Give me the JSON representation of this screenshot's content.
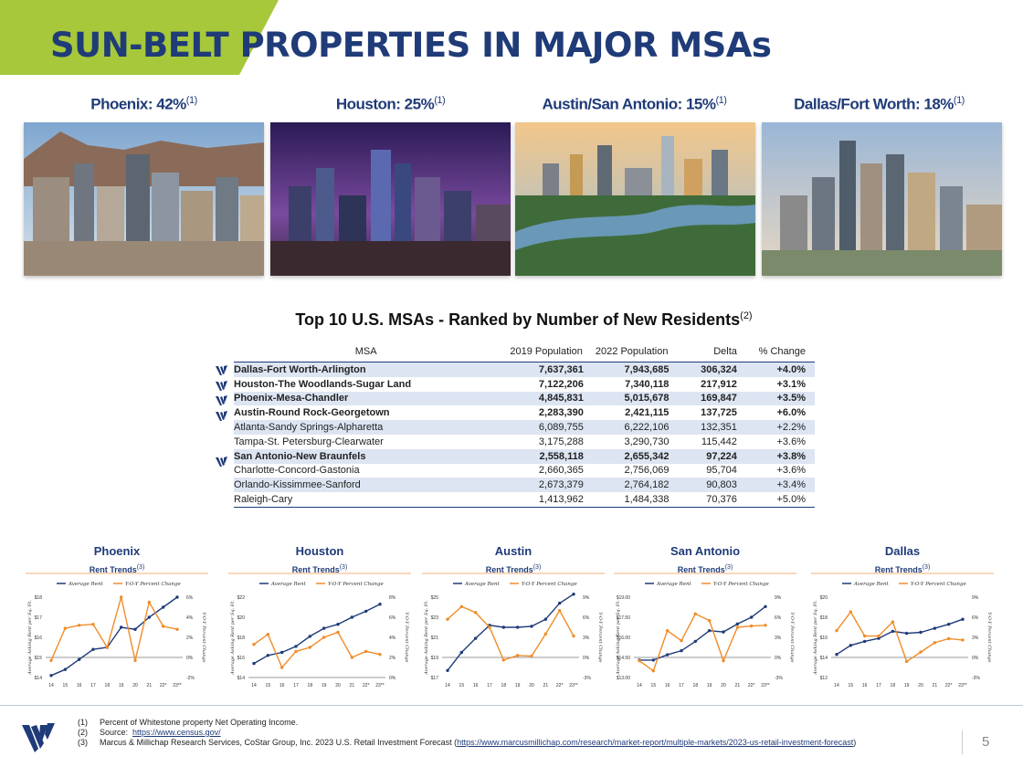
{
  "title": "SUN-BELT PROPERTIES IN MAJOR MSAs",
  "colors": {
    "navy": "#1f3b78",
    "lime": "#a6c83a",
    "orange": "#f08c2a",
    "shade": "#dde5f3"
  },
  "cities": [
    {
      "label": "Phoenix: 42%",
      "sup": "(1)"
    },
    {
      "label": "Houston: 25%",
      "sup": "(1)"
    },
    {
      "label": "Austin/San Antonio: 15%",
      "sup": "(1)"
    },
    {
      "label": "Dallas/Fort Worth: 18%",
      "sup": "(1)"
    }
  ],
  "table": {
    "title": "Top 10 U.S. MSAs - Ranked by Number of New Residents",
    "title_sup": "(2)",
    "headers": [
      "MSA",
      "2019 Population",
      "2022 Population",
      "Delta",
      "% Change"
    ],
    "rows": [
      {
        "msa": "Dallas-Fort Worth-Arlington",
        "p2019": "7,637,361",
        "p2022": "7,943,685",
        "delta": "306,324",
        "pct": "+4.0%",
        "bold": true,
        "shade": true,
        "mark": true
      },
      {
        "msa": "Houston-The Woodlands-Sugar Land",
        "p2019": "7,122,206",
        "p2022": "7,340,118",
        "delta": "217,912",
        "pct": "+3.1%",
        "bold": true,
        "shade": false,
        "mark": true
      },
      {
        "msa": "Phoenix-Mesa-Chandler",
        "p2019": "4,845,831",
        "p2022": "5,015,678",
        "delta": "169,847",
        "pct": "+3.5%",
        "bold": true,
        "shade": true,
        "mark": true
      },
      {
        "msa": "Austin-Round Rock-Georgetown",
        "p2019": "2,283,390",
        "p2022": "2,421,115",
        "delta": "137,725",
        "pct": "+6.0%",
        "bold": true,
        "shade": false,
        "mark": true
      },
      {
        "msa": "Atlanta-Sandy Springs-Alpharetta",
        "p2019": "6,089,755",
        "p2022": "6,222,106",
        "delta": "132,351",
        "pct": "+2.2%",
        "bold": false,
        "shade": true,
        "mark": false
      },
      {
        "msa": "Tampa-St. Petersburg-Clearwater",
        "p2019": "3,175,288",
        "p2022": "3,290,730",
        "delta": "115,442",
        "pct": "+3.6%",
        "bold": false,
        "shade": false,
        "mark": false
      },
      {
        "msa": "San Antonio-New Braunfels",
        "p2019": "2,558,118",
        "p2022": "2,655,342",
        "delta": "97,224",
        "pct": "+3.8%",
        "bold": true,
        "shade": true,
        "mark": true
      },
      {
        "msa": "Charlotte-Concord-Gastonia",
        "p2019": "2,660,365",
        "p2022": "2,756,069",
        "delta": "95,704",
        "pct": "+3.6%",
        "bold": false,
        "shade": false,
        "mark": false
      },
      {
        "msa": "Orlando-Kissimmee-Sanford",
        "p2019": "2,673,379",
        "p2022": "2,764,182",
        "delta": "90,803",
        "pct": "+3.4%",
        "bold": false,
        "shade": true,
        "mark": false
      },
      {
        "msa": "Raleigh-Cary",
        "p2019": "1,413,962",
        "p2022": "1,484,338",
        "delta": "70,376",
        "pct": "+5.0%",
        "bold": false,
        "shade": false,
        "mark": false
      }
    ]
  },
  "chart_data": [
    {
      "type": "line",
      "title": "Phoenix",
      "subtitle": "Rent Trends",
      "subtitle_sup": "(3)",
      "x": [
        "14",
        "15",
        "16",
        "17",
        "18",
        "19",
        "20",
        "21",
        "22*",
        "23**"
      ],
      "ylabel": "Average Asking Rent per Sq. Ft.",
      "y2label": "Y-O-Y Percent Change",
      "yticks": [
        "$14",
        "$15",
        "$16",
        "$17",
        "$18"
      ],
      "ylim": [
        14,
        18
      ],
      "y2ticks": [
        "-2%",
        "0%",
        "2%",
        "4%",
        "6%"
      ],
      "y2lim": [
        -2,
        6
      ],
      "series": [
        {
          "name": "Average Rent",
          "axis": "left",
          "values": [
            14.1,
            14.4,
            14.9,
            15.4,
            15.5,
            16.5,
            16.4,
            17.0,
            17.5,
            18.0
          ]
        },
        {
          "name": "Y-O-Y Percent Change",
          "axis": "right",
          "values": [
            -0.3,
            2.9,
            3.2,
            3.3,
            1.0,
            6.0,
            -0.3,
            5.5,
            3.1,
            2.8
          ]
        }
      ]
    },
    {
      "type": "line",
      "title": "Houston",
      "subtitle": "Rent Trends",
      "subtitle_sup": "(3)",
      "x": [
        "14",
        "15",
        "16",
        "17",
        "18",
        "19",
        "20",
        "21",
        "22*",
        "23**"
      ],
      "ylabel": "Average Asking Rent per Sq. Ft.",
      "y2label": "Y-O-Y Percent Change",
      "yticks": [
        "$14",
        "$16",
        "$18",
        "$20",
        "$22"
      ],
      "ylim": [
        14,
        22
      ],
      "y2ticks": [
        "0%",
        "2%",
        "4%",
        "6%",
        "8%"
      ],
      "y2lim": [
        0,
        8
      ],
      "series": [
        {
          "name": "Average Rent",
          "axis": "left",
          "values": [
            15.4,
            16.2,
            16.5,
            17.1,
            18.1,
            18.9,
            19.3,
            20.0,
            20.6,
            21.3
          ]
        },
        {
          "name": "Y-O-Y Percent Change",
          "axis": "right",
          "values": [
            3.3,
            4.3,
            1.0,
            2.6,
            3.0,
            4.0,
            4.5,
            2.0,
            2.6,
            2.3
          ]
        }
      ]
    },
    {
      "type": "line",
      "title": "Austin",
      "subtitle": "Rent Trends",
      "subtitle_sup": "(3)",
      "x": [
        "14",
        "15",
        "16",
        "17",
        "18",
        "19",
        "20",
        "21",
        "22*",
        "23**"
      ],
      "ylabel": "Average Asking Rent per Sq. Ft.",
      "y2label": "Y-O-Y Percent Change",
      "yticks": [
        "$17",
        "$19",
        "$21",
        "$23",
        "$25"
      ],
      "ylim": [
        17,
        25
      ],
      "y2ticks": [
        "-3%",
        "0%",
        "3%",
        "6%",
        "9%"
      ],
      "y2lim": [
        -3,
        9
      ],
      "series": [
        {
          "name": "Average Rent",
          "axis": "left",
          "values": [
            17.7,
            19.5,
            20.9,
            22.2,
            22.0,
            22.0,
            22.1,
            22.8,
            24.4,
            25.3
          ]
        },
        {
          "name": "Y-O-Y Percent Change",
          "axis": "right",
          "values": [
            5.7,
            7.6,
            6.7,
            4.5,
            -0.4,
            0.3,
            0.2,
            3.5,
            7.0,
            3.2
          ]
        }
      ]
    },
    {
      "type": "line",
      "title": "San Antonio",
      "subtitle": "Rent Trends",
      "subtitle_sup": "(3)",
      "x": [
        "14",
        "15",
        "16",
        "17",
        "18",
        "19",
        "20",
        "21",
        "22*",
        "23**"
      ],
      "ylabel": "Average Asking Rent per Sq. Ft.",
      "y2label": "Y-O-Y Percent Change",
      "yticks": [
        "$13.00",
        "$14.50",
        "$16.00",
        "$17.50",
        "$19.00"
      ],
      "ylim": [
        13,
        19
      ],
      "y2ticks": [
        "-3%",
        "0%",
        "3%",
        "6%",
        "9%"
      ],
      "y2lim": [
        -3,
        9
      ],
      "series": [
        {
          "name": "Average Rent",
          "axis": "left",
          "values": [
            14.3,
            14.3,
            14.7,
            15.0,
            15.7,
            16.5,
            16.4,
            17.0,
            17.5,
            18.3
          ]
        },
        {
          "name": "Y-O-Y Percent Change",
          "axis": "right",
          "values": [
            -0.5,
            -2.0,
            4.0,
            2.5,
            6.5,
            5.5,
            -0.5,
            4.5,
            4.7,
            4.8
          ]
        }
      ]
    },
    {
      "type": "line",
      "title": "Dallas",
      "subtitle": "Rent Trends",
      "subtitle_sup": "(3)",
      "x": [
        "14",
        "15",
        "16",
        "17",
        "18",
        "19",
        "20",
        "21",
        "22*",
        "23**"
      ],
      "ylabel": "Average Asking Rent per Sq. Ft.",
      "y2label": "Y-O-Y Percent Change",
      "yticks": [
        "$12",
        "$14",
        "$16",
        "$18",
        "$20"
      ],
      "ylim": [
        12,
        20
      ],
      "y2ticks": [
        "-3%",
        "0%",
        "3%",
        "6%",
        "9%"
      ],
      "y2lim": [
        -3,
        9
      ],
      "series": [
        {
          "name": "Average Rent",
          "axis": "left",
          "values": [
            14.3,
            15.2,
            15.6,
            15.9,
            16.6,
            16.4,
            16.5,
            16.9,
            17.3,
            17.8
          ]
        },
        {
          "name": "Y-O-Y Percent Change",
          "axis": "right",
          "values": [
            4.0,
            6.8,
            3.2,
            3.2,
            5.3,
            -0.6,
            0.8,
            2.2,
            2.8,
            2.6
          ]
        }
      ]
    }
  ],
  "footnotes": [
    {
      "n": "(1)",
      "text": "Percent of Whitestone property Net Operating Income.",
      "link": ""
    },
    {
      "n": "(2)",
      "text": "Source:",
      "link": "https://www.census.gov/"
    },
    {
      "n": "(3)",
      "text": "Marcus & Millichap Research Services, CoStar Group, Inc. 2023 U.S. Retail Investment Forecast (",
      "link": "https://www.marcusmillichap.com/research/market-report/multiple-markets/2023-us-retail-investment-forecast",
      "tail": ")"
    }
  ],
  "page_number": "5"
}
